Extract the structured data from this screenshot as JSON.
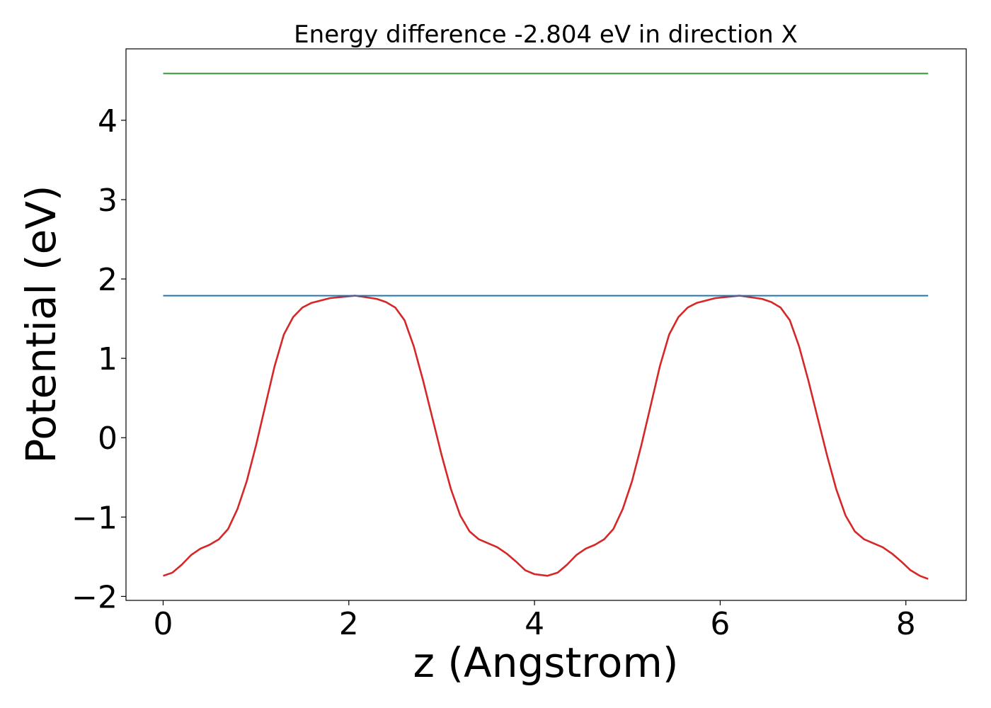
{
  "chart_data": {
    "type": "line",
    "title": "Energy difference -2.804 eV in direction X",
    "xlabel": "z (Angstrom)",
    "ylabel": "Potential (eV)",
    "xlim": [
      -0.4,
      8.65
    ],
    "ylim": [
      -2.05,
      4.9
    ],
    "xticks": [
      0,
      2,
      4,
      6,
      8
    ],
    "xtick_labels": [
      "0",
      "2",
      "4",
      "6",
      "8"
    ],
    "yticks": [
      -2,
      -1,
      0,
      1,
      2,
      3,
      4
    ],
    "ytick_labels": [
      "−2",
      "−1",
      "0",
      "1",
      "2",
      "3",
      "4"
    ],
    "grid": false,
    "series": [
      {
        "color": "#d62728",
        "x": [
          0,
          0.1,
          0.2,
          0.3,
          0.4,
          0.5,
          0.6,
          0.7,
          0.8,
          0.9,
          1.0,
          1.1,
          1.2,
          1.3,
          1.4,
          1.5,
          1.6,
          1.8,
          2.07,
          2.3,
          2.4,
          2.5,
          2.6,
          2.7,
          2.8,
          2.9,
          3.0,
          3.1,
          3.2,
          3.3,
          3.4,
          3.5,
          3.6,
          3.7,
          3.8,
          3.9,
          4.0,
          4.14,
          4.25,
          4.35,
          4.45,
          4.55,
          4.65,
          4.75,
          4.85,
          4.95,
          5.05,
          5.15,
          5.25,
          5.35,
          5.45,
          5.55,
          5.65,
          5.75,
          5.95,
          6.21,
          6.45,
          6.55,
          6.65,
          6.75,
          6.85,
          6.95,
          7.05,
          7.15,
          7.25,
          7.35,
          7.45,
          7.55,
          7.65,
          7.75,
          7.85,
          7.95,
          8.05,
          8.15,
          8.24
        ],
        "y": [
          -1.74,
          -1.7,
          -1.6,
          -1.48,
          -1.4,
          -1.35,
          -1.28,
          -1.15,
          -0.9,
          -0.55,
          -0.1,
          0.4,
          0.9,
          1.3,
          1.52,
          1.64,
          1.7,
          1.76,
          1.79,
          1.75,
          1.71,
          1.64,
          1.48,
          1.15,
          0.72,
          0.25,
          -0.22,
          -0.65,
          -0.98,
          -1.18,
          -1.28,
          -1.33,
          -1.38,
          -1.46,
          -1.56,
          -1.67,
          -1.72,
          -1.74,
          -1.7,
          -1.6,
          -1.48,
          -1.4,
          -1.35,
          -1.28,
          -1.15,
          -0.9,
          -0.55,
          -0.1,
          0.4,
          0.9,
          1.3,
          1.52,
          1.64,
          1.7,
          1.76,
          1.79,
          1.75,
          1.71,
          1.64,
          1.48,
          1.15,
          0.72,
          0.25,
          -0.22,
          -0.65,
          -0.98,
          -1.18,
          -1.28,
          -1.33,
          -1.38,
          -1.46,
          -1.56,
          -1.67,
          -1.74,
          -1.78
        ]
      },
      {
        "color": "#1f77b4",
        "x": [
          0,
          8.24
        ],
        "y": [
          1.79,
          1.79
        ]
      },
      {
        "color": "#2ca02c",
        "x": [
          0,
          8.24
        ],
        "y": [
          4.59,
          4.59
        ]
      }
    ]
  }
}
